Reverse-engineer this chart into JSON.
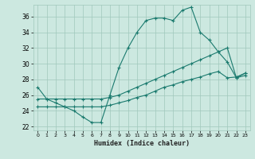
{
  "xlabel": "Humidex (Indice chaleur)",
  "ylabel": "",
  "bg_color": "#cce8e0",
  "grid_color": "#a0c8bc",
  "line_color": "#1a7a6e",
  "xlim": [
    -0.5,
    23.5
  ],
  "ylim": [
    21.5,
    37.5
  ],
  "yticks": [
    22,
    24,
    26,
    28,
    30,
    32,
    34,
    36
  ],
  "xticks": [
    0,
    1,
    2,
    3,
    4,
    5,
    6,
    7,
    8,
    9,
    10,
    11,
    12,
    13,
    14,
    15,
    16,
    17,
    18,
    19,
    20,
    21,
    22,
    23
  ],
  "line1_x": [
    0,
    1,
    2,
    3,
    4,
    5,
    6,
    7,
    8,
    9,
    10,
    11,
    12,
    13,
    14,
    15,
    16,
    17,
    18,
    19,
    20,
    21,
    22,
    23
  ],
  "line1_y": [
    27.0,
    25.5,
    25.0,
    24.5,
    24.0,
    23.2,
    22.5,
    22.5,
    26.0,
    29.5,
    32.0,
    34.0,
    35.5,
    35.8,
    35.8,
    35.5,
    36.8,
    37.2,
    34.0,
    33.0,
    31.5,
    30.2,
    28.2,
    28.5
  ],
  "line2_x": [
    0,
    1,
    2,
    3,
    4,
    5,
    6,
    7,
    8,
    9,
    10,
    11,
    12,
    13,
    14,
    15,
    16,
    17,
    18,
    19,
    20,
    21,
    22,
    23
  ],
  "line2_y": [
    25.5,
    25.5,
    25.5,
    25.5,
    25.5,
    25.5,
    25.5,
    25.5,
    25.7,
    26.0,
    26.5,
    27.0,
    27.5,
    28.0,
    28.5,
    29.0,
    29.5,
    30.0,
    30.5,
    31.0,
    31.5,
    32.0,
    28.2,
    28.8
  ],
  "line3_x": [
    0,
    1,
    2,
    3,
    4,
    5,
    6,
    7,
    8,
    9,
    10,
    11,
    12,
    13,
    14,
    15,
    16,
    17,
    18,
    19,
    20,
    21,
    22,
    23
  ],
  "line3_y": [
    24.5,
    24.5,
    24.5,
    24.5,
    24.5,
    24.5,
    24.5,
    24.5,
    24.7,
    25.0,
    25.3,
    25.7,
    26.0,
    26.5,
    27.0,
    27.3,
    27.7,
    28.0,
    28.3,
    28.7,
    29.0,
    28.2,
    28.3,
    28.8
  ]
}
